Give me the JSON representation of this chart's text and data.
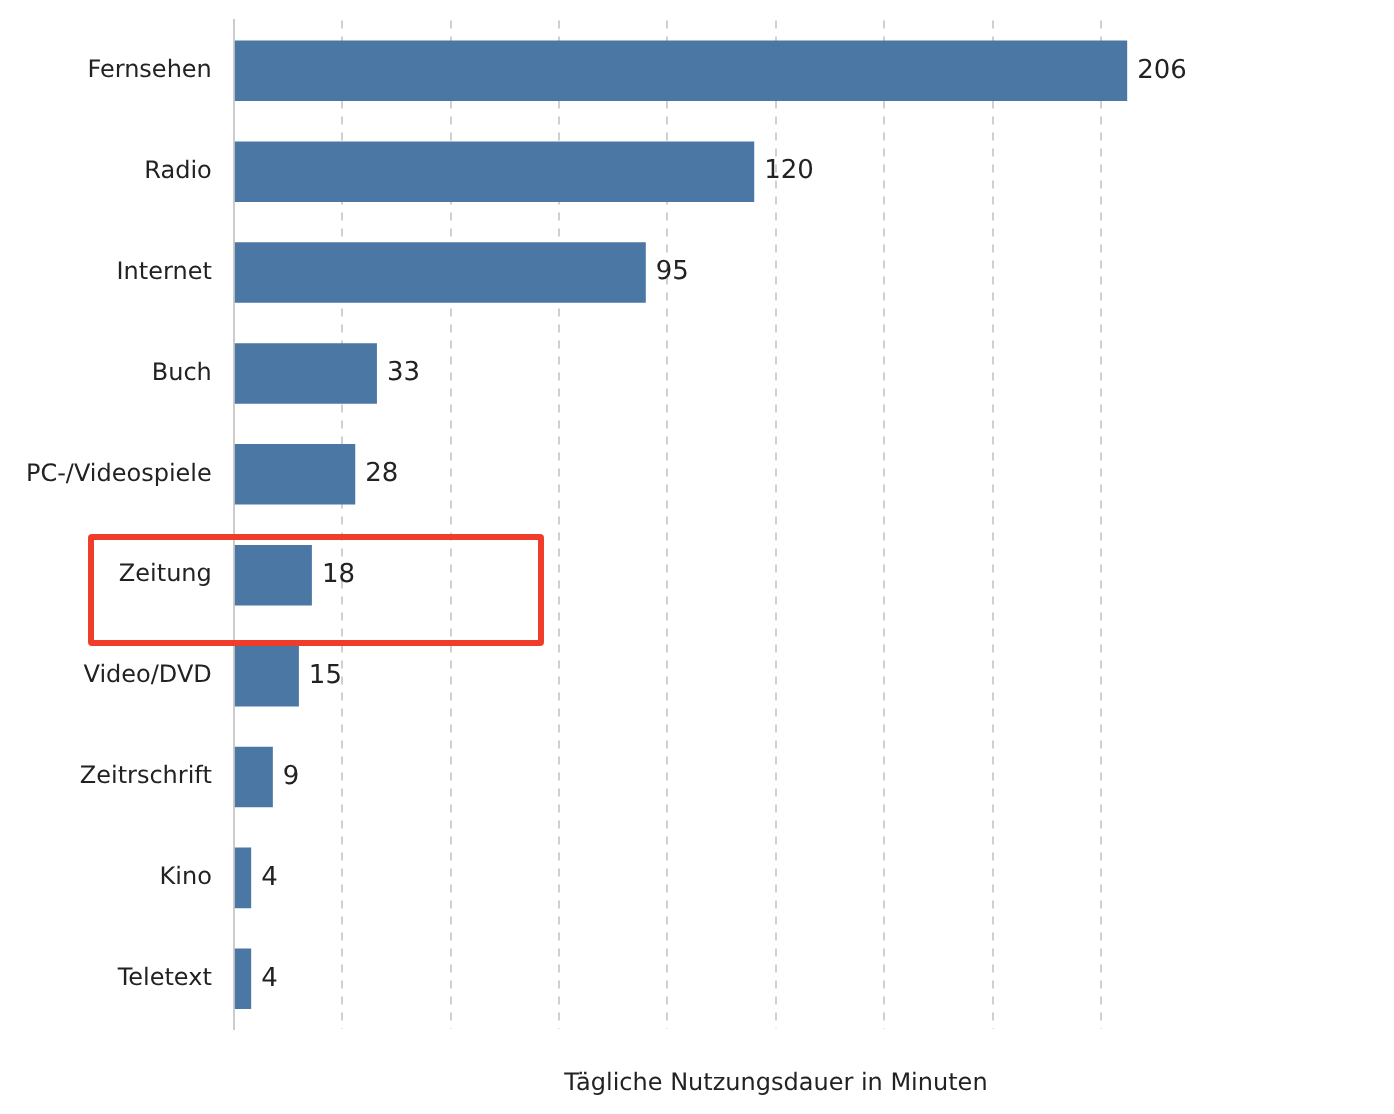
{
  "chart_data": {
    "type": "bar",
    "orientation": "horizontal",
    "xlabel": "Tägliche Nutzungsdauer in Minuten",
    "categories": [
      "Fernsehen",
      "Radio",
      "Internet",
      "Buch",
      "PC-/Videospiele",
      "Zeitung",
      "Video/DVD",
      "Zeitrschrift",
      "Kino",
      "Teletext"
    ],
    "values": [
      206,
      120,
      95,
      33,
      28,
      18,
      15,
      9,
      4,
      4
    ],
    "color": "#4a77a3",
    "data_labels": true,
    "xticks": [
      {
        "value": 0,
        "label": null
      },
      {
        "value": 25,
        "label": null
      },
      {
        "value": 50,
        "label": null
      },
      {
        "value": 75,
        "label": null
      },
      {
        "value": 100,
        "label": null
      },
      {
        "value": 125,
        "label": null
      },
      {
        "value": 150,
        "label": null
      },
      {
        "value": 175,
        "label": null
      },
      {
        "value": 200,
        "label": null
      }
    ],
    "grid": "x",
    "tick_labels": "y"
  }
}
